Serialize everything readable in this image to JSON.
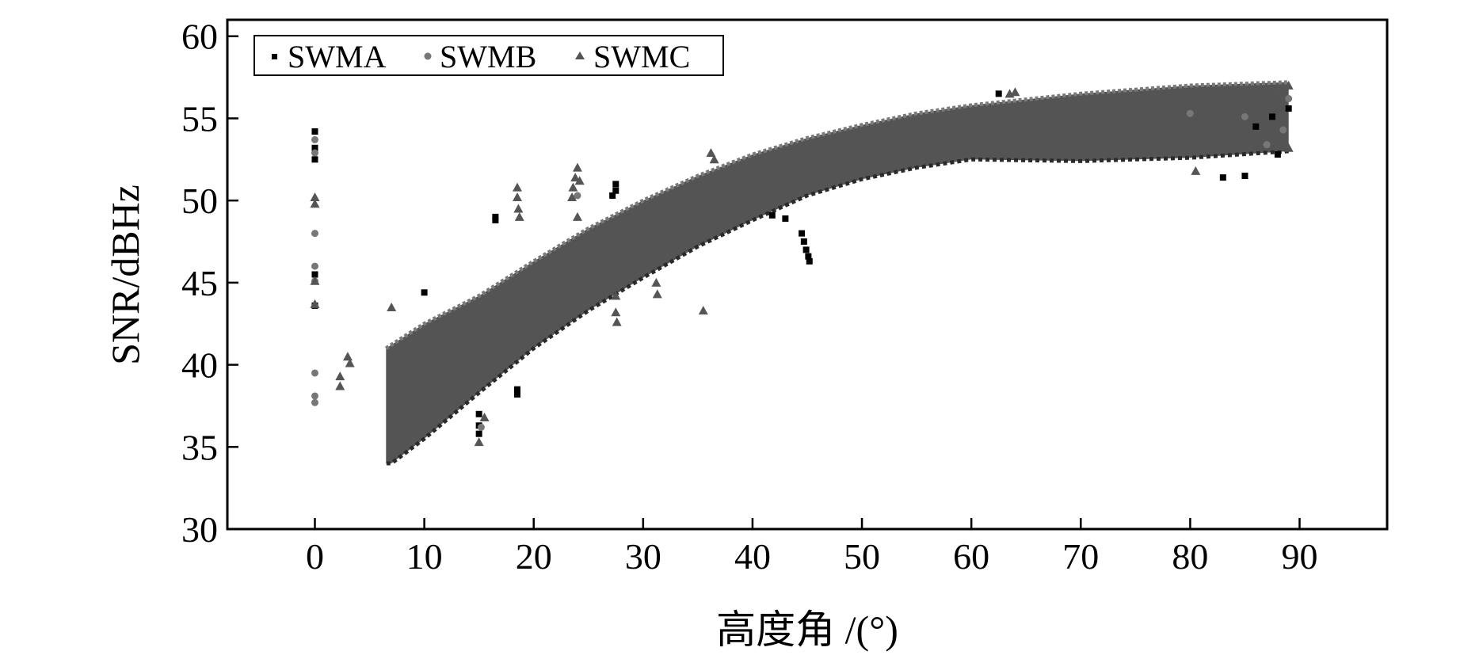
{
  "chart_data": {
    "type": "scatter",
    "title": "",
    "xlabel": "高度角 /(°)",
    "ylabel": "SNR/dBHz",
    "xlim": [
      -8,
      98
    ],
    "ylim": [
      30,
      61
    ],
    "xticks": [
      0,
      10,
      20,
      30,
      40,
      50,
      60,
      70,
      80,
      90
    ],
    "yticks": [
      30,
      35,
      40,
      45,
      50,
      55,
      60
    ],
    "xtick_labels": [
      "0",
      "10",
      "20",
      "30",
      "40",
      "50",
      "60",
      "70",
      "80",
      "90"
    ],
    "ytick_labels": [
      "30",
      "35",
      "40",
      "45",
      "50",
      "55",
      "60"
    ],
    "grid": false,
    "legend_position": "top-left",
    "band": {
      "upper": [
        [
          6.5,
          41
        ],
        [
          10,
          42.5
        ],
        [
          15,
          44.2
        ],
        [
          20,
          46.3
        ],
        [
          25,
          48.3
        ],
        [
          30,
          50.0
        ],
        [
          35,
          51.5
        ],
        [
          40,
          52.8
        ],
        [
          45,
          53.8
        ],
        [
          50,
          54.6
        ],
        [
          55,
          55.3
        ],
        [
          60,
          55.8
        ],
        [
          70,
          56.5
        ],
        [
          80,
          57.0
        ],
        [
          89,
          57.2
        ]
      ],
      "lower": [
        [
          89,
          53
        ],
        [
          80,
          52.6
        ],
        [
          70,
          52.4
        ],
        [
          60,
          52.5
        ],
        [
          55,
          52.0
        ],
        [
          50,
          51.3
        ],
        [
          45,
          50.3
        ],
        [
          40,
          48.8
        ],
        [
          35,
          47.2
        ],
        [
          30,
          45.3
        ],
        [
          25,
          43.3
        ],
        [
          20,
          41.0
        ],
        [
          15,
          38.3
        ],
        [
          10,
          35.5
        ],
        [
          7,
          34.0
        ],
        [
          6.5,
          34.0
        ]
      ]
    },
    "series": [
      {
        "name": "SWMA",
        "marker": "square",
        "color": "#000000",
        "points": [
          [
            0,
            54.2
          ],
          [
            0,
            52.5
          ],
          [
            0,
            45.5
          ],
          [
            0,
            43.6
          ],
          [
            0,
            53.2
          ],
          [
            10,
            44.4
          ],
          [
            16.5,
            48.8
          ],
          [
            16.5,
            49.0
          ],
          [
            18.5,
            38.5
          ],
          [
            18.5,
            38.2
          ],
          [
            15,
            37
          ],
          [
            15,
            36.3
          ],
          [
            15,
            35.8
          ],
          [
            27.5,
            51
          ],
          [
            27.5,
            50.6
          ],
          [
            27.2,
            50.3
          ],
          [
            44.5,
            48
          ],
          [
            44.7,
            47.5
          ],
          [
            44.9,
            47
          ],
          [
            45.1,
            46.6
          ],
          [
            45.2,
            46.3
          ],
          [
            43,
            48.9
          ],
          [
            41.8,
            49.1
          ],
          [
            62.5,
            56.5
          ],
          [
            83,
            51.4
          ],
          [
            85,
            51.5
          ],
          [
            88,
            52.8
          ],
          [
            89,
            55.6
          ],
          [
            86,
            54.5
          ],
          [
            87.5,
            55.1
          ]
        ]
      },
      {
        "name": "SWMB",
        "marker": "circle",
        "color": "#777777",
        "points": [
          [
            0,
            53.7
          ],
          [
            0,
            52.9
          ],
          [
            0,
            48
          ],
          [
            0,
            46
          ],
          [
            0,
            45.1
          ],
          [
            0,
            39.5
          ],
          [
            0,
            38.1
          ],
          [
            0,
            37.7
          ],
          [
            15.2,
            36.2
          ],
          [
            24,
            50.3
          ],
          [
            80,
            55.3
          ],
          [
            85,
            55.1
          ],
          [
            87,
            53.4
          ],
          [
            89,
            56.2
          ],
          [
            88.5,
            54.3
          ]
        ]
      },
      {
        "name": "SWMC",
        "marker": "triangle",
        "color": "#555555",
        "points": [
          [
            0,
            50.2
          ],
          [
            0,
            49.8
          ],
          [
            0,
            45.1
          ],
          [
            0,
            43.7
          ],
          [
            2.3,
            39.3
          ],
          [
            2.3,
            38.7
          ],
          [
            3,
            40.5
          ],
          [
            3.2,
            40.1
          ],
          [
            7,
            43.5
          ],
          [
            15,
            35.3
          ],
          [
            15.5,
            36.8
          ],
          [
            18.5,
            50.8
          ],
          [
            18.5,
            50.2
          ],
          [
            18.6,
            49.5
          ],
          [
            18.7,
            49
          ],
          [
            23.5,
            50.2
          ],
          [
            23.6,
            50.8
          ],
          [
            23.8,
            51.4
          ],
          [
            24,
            52
          ],
          [
            24.2,
            51.2
          ],
          [
            24,
            49
          ],
          [
            27.5,
            44.2
          ],
          [
            27.5,
            43.2
          ],
          [
            27.6,
            42.6
          ],
          [
            31.2,
            45
          ],
          [
            31.3,
            44.3
          ],
          [
            35.5,
            43.3
          ],
          [
            36.2,
            52.9
          ],
          [
            36.5,
            52.5
          ],
          [
            63.5,
            56.5
          ],
          [
            64,
            56.6
          ],
          [
            80.5,
            51.8
          ],
          [
            88,
            53.3
          ],
          [
            89,
            53.2
          ],
          [
            89,
            57.0
          ],
          [
            88,
            56.8
          ]
        ]
      }
    ]
  }
}
